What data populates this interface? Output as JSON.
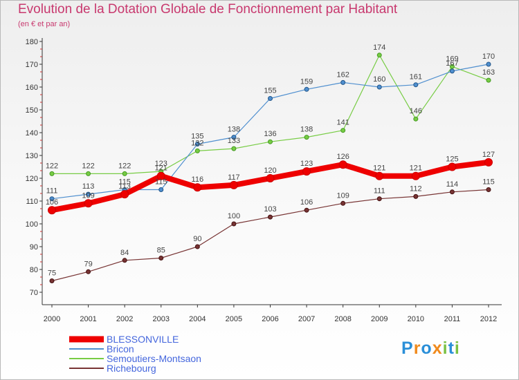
{
  "header": {
    "title": "Evolution de la Dotation Globale de Fonctionnement par Habitant",
    "subtitle": "(en € et par an)"
  },
  "chart_data": {
    "type": "line",
    "title": "Evolution de la Dotation Globale de Fonctionnement par Habitant",
    "subtitle": "(en € et par an)",
    "xlabel": "",
    "ylabel": "",
    "x": [
      "2000",
      "2001",
      "2002",
      "2003",
      "2004",
      "2005",
      "2006",
      "2007",
      "2008",
      "2009",
      "2010",
      "2011",
      "2012"
    ],
    "ylim": [
      70,
      180
    ],
    "yticks": [
      70,
      80,
      90,
      100,
      110,
      120,
      130,
      140,
      150,
      160,
      170,
      180
    ],
    "grid": false,
    "legend_position": "bottom-left",
    "series": [
      {
        "name": "BLESSONVILLE",
        "color": "#ee0000",
        "values": [
          106,
          109,
          113,
          121,
          116,
          117,
          120,
          123,
          126,
          121,
          121,
          125,
          127
        ]
      },
      {
        "name": "Bricon",
        "color": "#4f8fcf",
        "values": [
          111,
          113,
          115,
          115,
          135,
          138,
          155,
          159,
          162,
          160,
          161,
          167,
          170
        ]
      },
      {
        "name": "Semoutiers-Montsaon",
        "color": "#77cc44",
        "values": [
          122,
          122,
          122,
          123,
          132,
          133,
          136,
          138,
          141,
          174,
          146,
          169,
          163
        ]
      },
      {
        "name": "Richebourg",
        "color": "#773333",
        "values": [
          75,
          79,
          84,
          85,
          90,
          100,
          103,
          106,
          109,
          111,
          112,
          114,
          115
        ]
      }
    ]
  },
  "brand": {
    "letters": [
      {
        "char": "P",
        "color": "#2a8fd8"
      },
      {
        "char": "r",
        "color": "#f08a1c"
      },
      {
        "char": "o",
        "color": "#2a8fd8"
      },
      {
        "char": "x",
        "color": "#f08a1c"
      },
      {
        "char": "i",
        "color": "#7ac143"
      },
      {
        "char": "t",
        "color": "#2a8fd8"
      },
      {
        "char": "i",
        "color": "#7ac143"
      }
    ]
  }
}
